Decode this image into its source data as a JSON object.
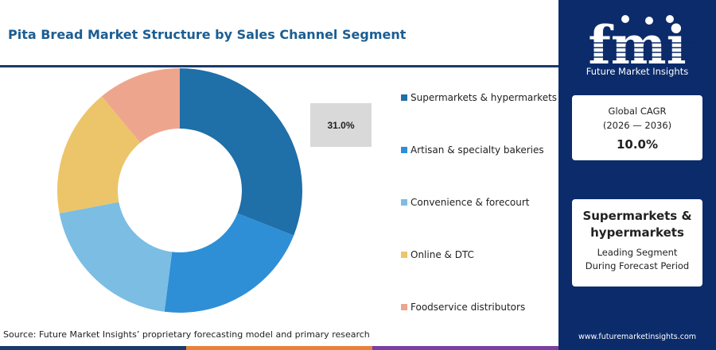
{
  "title": "Pita Bread Market Structure by Sales Channel Segment",
  "source": "Source: Future Market Insights’ proprietary forecasting model and primary research",
  "callout_value": "31.0%",
  "brand": {
    "logo_letters": "fmi",
    "name": "Future Market Insights",
    "website": "www.futuremarketinsights.com"
  },
  "cagr_card": {
    "label": "Global CAGR",
    "period": "(2026 — 2036)",
    "value": "10.0%"
  },
  "segment_card": {
    "name": "Supermarkets & hypermarkets",
    "note_line1": "Leading Segment",
    "note_line2": "During Forecast Period"
  },
  "colors": {
    "title": "#1b5d93",
    "panel": "#0b2b6b",
    "bottom_bar": [
      "#1b3a6b",
      "#e8823a",
      "#7b3fa0"
    ]
  },
  "chart_data": {
    "type": "pie",
    "donut": true,
    "categories": [
      "Supermarkets & hypermarkets",
      "Artisan & specialty bakeries",
      "Convenience & forecourt",
      "Online & DTC",
      "Foodservice distributors"
    ],
    "values": [
      31.0,
      21.0,
      20.0,
      17.0,
      11.0
    ],
    "colors": [
      "#1f6fa8",
      "#2e8fd6",
      "#7bbde3",
      "#ecc56a",
      "#eea58d"
    ],
    "start_angle_deg": 0,
    "direction": "clockwise",
    "legend_position": "right"
  }
}
